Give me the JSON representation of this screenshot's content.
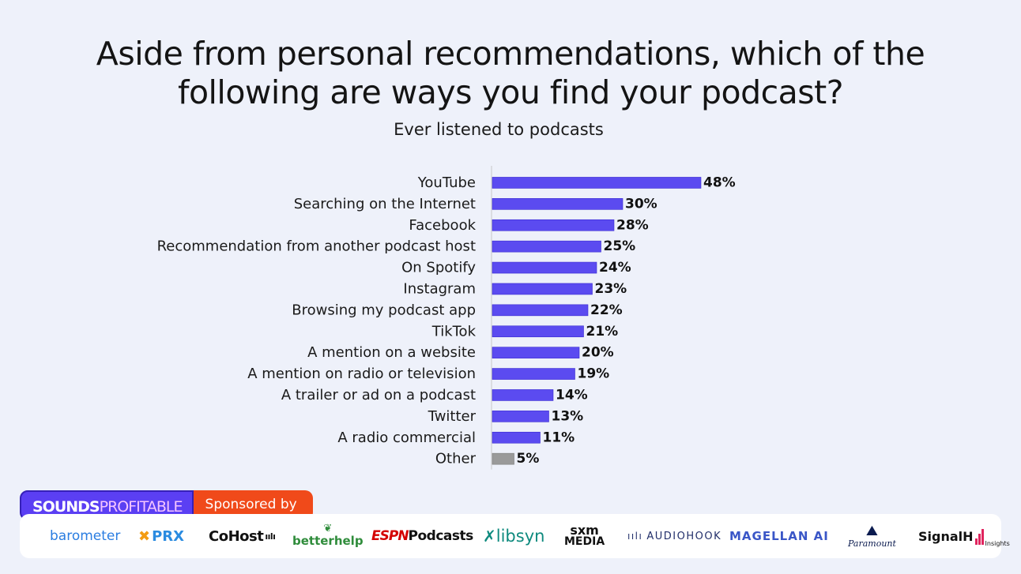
{
  "title_line1": "Aside from personal recommendations, which of the",
  "title_line2": "following are ways you find your podcast?",
  "subtitle": "Ever listened to podcasts",
  "colors": {
    "bar": "#5b4bf0",
    "other_bar": "#9a9a9a",
    "background": "#eef1fa"
  },
  "chart_data": {
    "type": "bar",
    "orientation": "horizontal",
    "title": "Aside from personal recommendations, which of the following are ways you find your podcast?",
    "subtitle": "Ever listened to podcasts",
    "categories": [
      "YouTube",
      "Searching on the Internet",
      "Facebook",
      "Recommendation from another podcast host",
      "On Spotify",
      "Instagram",
      "Browsing my podcast app",
      "TikTok",
      "A mention on a website",
      "A mention on radio or television",
      "A trailer or ad on a podcast",
      "Twitter",
      "A radio commercial",
      "Other"
    ],
    "values": [
      48,
      30,
      28,
      25,
      24,
      23,
      22,
      21,
      20,
      19,
      14,
      13,
      11,
      5
    ],
    "value_labels": [
      "48%",
      "30%",
      "28%",
      "25%",
      "24%",
      "23%",
      "22%",
      "21%",
      "20%",
      "19%",
      "14%",
      "13%",
      "11%",
      "5%"
    ],
    "unit": "%",
    "xlim": [
      0,
      48
    ],
    "grid": false,
    "legend": "none"
  },
  "footer": {
    "brand_part1": "SOUNDS",
    "brand_part2": "PROFITABLE",
    "sponsored_label": "Sponsored by",
    "sponsors": {
      "barometer": "barometer",
      "prx_mark": "✖",
      "prx": "PRX",
      "cohost": "CoHost",
      "cohost_wave": "ıılı",
      "betterhelp": "betterhelp",
      "espn": "ESPN",
      "espn_podcasts": "Podcasts",
      "libsyn": "libsyn",
      "sxm_line1": "sxm",
      "sxm_line2": "MEDIA",
      "audiohook": "AUDIOHOOK",
      "magellan": "MAGELLAN AI",
      "paramount": "Paramount",
      "signal": "SignalH",
      "signal_insights": "Insights"
    }
  }
}
